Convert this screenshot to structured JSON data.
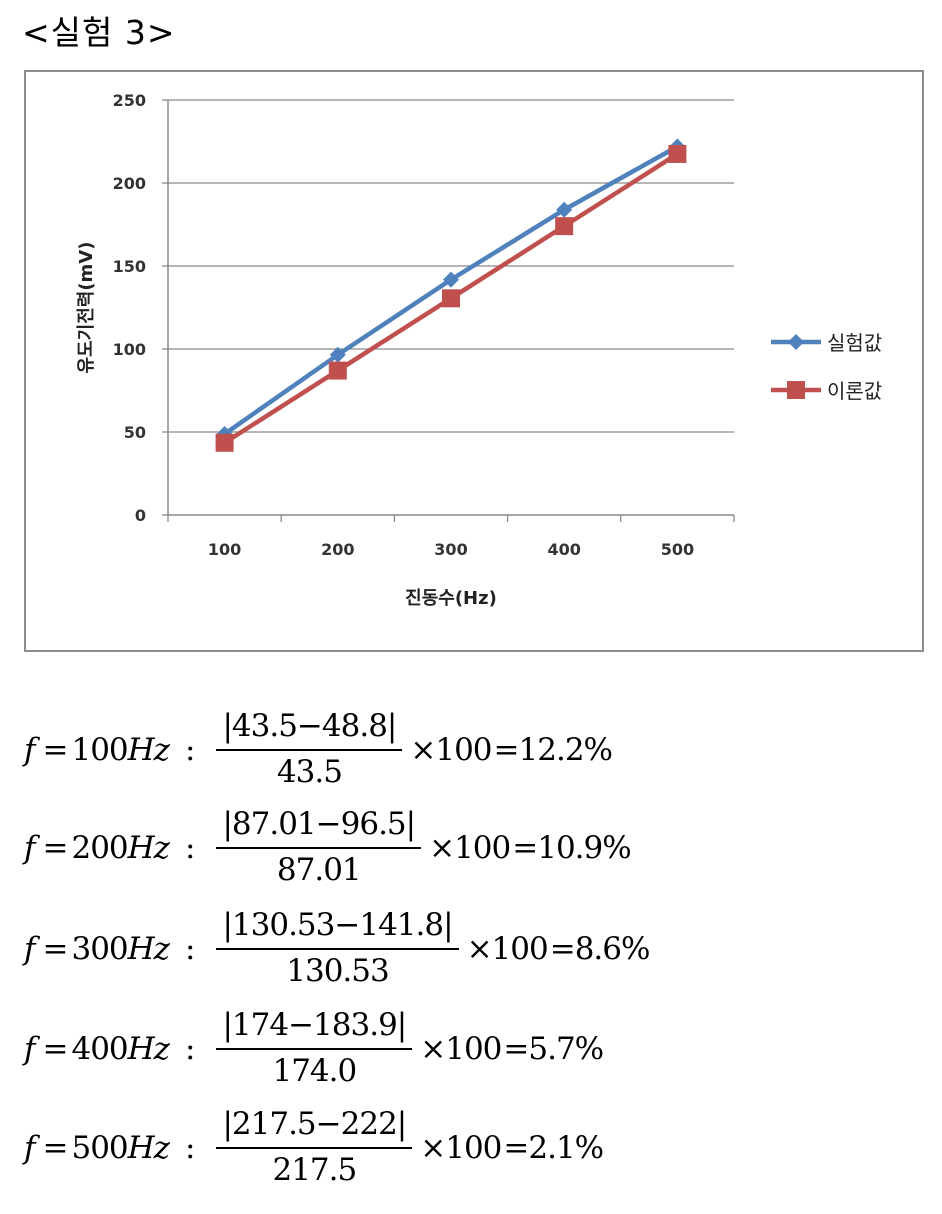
{
  "heading": "<실험 3>",
  "chart_data": {
    "type": "line",
    "x": [
      100,
      200,
      300,
      400,
      500
    ],
    "xlabel": "진동수(Hz)",
    "ylabel": "유도기전력(mV)",
    "ylim": [
      0,
      250
    ],
    "yticks": [
      0,
      50,
      100,
      150,
      200,
      250
    ],
    "grid": true,
    "legend_position": "right",
    "series": [
      {
        "name": "실험값",
        "values": [
          48.8,
          96.5,
          141.8,
          183.9,
          222
        ],
        "color": "#4f81bd",
        "marker": "diamond"
      },
      {
        "name": "이론값",
        "values": [
          43.5,
          87.01,
          130.53,
          174.0,
          217.5
        ],
        "color": "#c0504d",
        "marker": "square"
      }
    ]
  },
  "formulas": [
    {
      "var": "f",
      "eq": "=",
      "freq": "100",
      "unit": "Hz",
      "colon": ":",
      "numerator": "|43.5−48.8|",
      "denominator": "43.5",
      "times": "×100",
      "result": "=12.2%"
    },
    {
      "var": "f",
      "eq": "=",
      "freq": "200",
      "unit": "Hz",
      "colon": ":",
      "numerator": "|87.01−96.5|",
      "denominator": "87.01",
      "times": "×100",
      "result": "=10.9%"
    },
    {
      "var": "f",
      "eq": "=",
      "freq": "300",
      "unit": "Hz",
      "colon": ":",
      "numerator": "|130.53−141.8|",
      "denominator": "130.53",
      "times": "×100",
      "result": "=8.6%"
    },
    {
      "var": "f",
      "eq": "=",
      "freq": "400",
      "unit": "Hz",
      "colon": ":",
      "numerator": "|174−183.9|",
      "denominator": "174.0",
      "times": "×100",
      "result": "=5.7%"
    },
    {
      "var": "f",
      "eq": "=",
      "freq": "500",
      "unit": "Hz",
      "colon": ":",
      "numerator": "|217.5−222|",
      "denominator": "217.5",
      "times": "×100",
      "result": "=2.1%"
    }
  ]
}
